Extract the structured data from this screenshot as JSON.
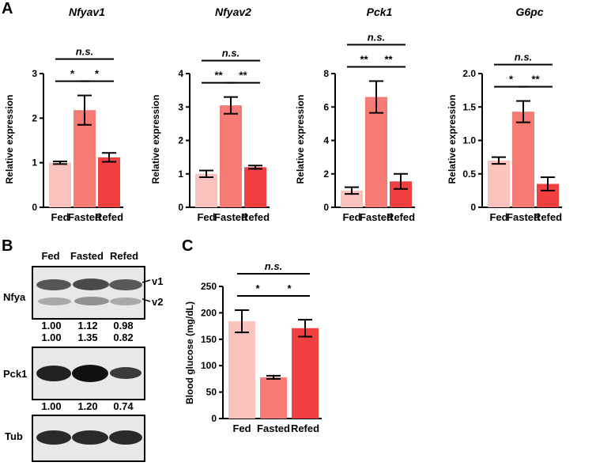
{
  "panels": {
    "a": "A",
    "b": "B",
    "c": "C"
  },
  "colors": {
    "fed": "#fbc3bd",
    "fasted": "#f77b75",
    "refed": "#f24040"
  },
  "categories": [
    "Fed",
    "Fasted",
    "Refed"
  ],
  "chart_data": [
    {
      "type": "bar",
      "title": "Nfyav1",
      "title_italic": true,
      "ylabel": "Relative expression",
      "ylim": [
        0,
        3
      ],
      "yticks": [
        "0",
        "1",
        "2",
        "3"
      ],
      "categories": [
        "Fed",
        "Fasted",
        "Refed"
      ],
      "values": [
        1.0,
        2.18,
        1.12
      ],
      "errors": [
        0.03,
        0.33,
        0.1
      ],
      "significance": [
        {
          "from": 0,
          "to": 1,
          "label": "*"
        },
        {
          "from": 1,
          "to": 2,
          "label": "*"
        },
        {
          "from": 0,
          "to": 2,
          "label": "n.s."
        }
      ]
    },
    {
      "type": "bar",
      "title": "Nfyav2",
      "title_italic": true,
      "ylabel": "Relative expression",
      "ylim": [
        0,
        4
      ],
      "yticks": [
        "0",
        "1",
        "2",
        "3",
        "4"
      ],
      "categories": [
        "Fed",
        "Fasted",
        "Refed"
      ],
      "values": [
        1.0,
        3.05,
        1.2
      ],
      "errors": [
        0.1,
        0.25,
        0.05
      ],
      "significance": [
        {
          "from": 0,
          "to": 1,
          "label": "**"
        },
        {
          "from": 1,
          "to": 2,
          "label": "**"
        },
        {
          "from": 0,
          "to": 2,
          "label": "n.s."
        }
      ]
    },
    {
      "type": "bar",
      "title": "Pck1",
      "title_italic": true,
      "ylabel": "Relative expression",
      "ylim": [
        0,
        8
      ],
      "yticks": [
        "0",
        "2",
        "4",
        "6",
        "8"
      ],
      "categories": [
        "Fed",
        "Fasted",
        "Refed"
      ],
      "values": [
        1.0,
        6.6,
        1.55
      ],
      "errors": [
        0.2,
        0.95,
        0.45
      ],
      "significance": [
        {
          "from": 0,
          "to": 1,
          "label": "**"
        },
        {
          "from": 1,
          "to": 2,
          "label": "**"
        },
        {
          "from": 0,
          "to": 2,
          "label": "n.s."
        }
      ]
    },
    {
      "type": "bar",
      "title": "G6pc",
      "title_italic": true,
      "ylabel": "Relative expression",
      "ylim": [
        0,
        2.0
      ],
      "yticks": [
        "0",
        "0.5",
        "1.0",
        "1.5",
        "2.0"
      ],
      "categories": [
        "Fed",
        "Fasted",
        "Refed"
      ],
      "values": [
        0.7,
        1.43,
        0.35
      ],
      "errors": [
        0.05,
        0.16,
        0.1
      ],
      "significance": [
        {
          "from": 0,
          "to": 1,
          "label": "*"
        },
        {
          "from": 1,
          "to": 2,
          "label": "**"
        },
        {
          "from": 0,
          "to": 2,
          "label": "n.s."
        }
      ]
    },
    {
      "type": "bar",
      "title": "",
      "ylabel": "Blood glucose (mg/dL)",
      "ylim": [
        0,
        250
      ],
      "yticks": [
        "0",
        "50",
        "100",
        "150",
        "200",
        "250"
      ],
      "categories": [
        "Fed",
        "Fasted",
        "Refed"
      ],
      "values": [
        184,
        78,
        171
      ],
      "errors": [
        21,
        3,
        16
      ],
      "significance": [
        {
          "from": 0,
          "to": 1,
          "label": "*"
        },
        {
          "from": 1,
          "to": 2,
          "label": "*"
        },
        {
          "from": 0,
          "to": 2,
          "label": "n.s."
        }
      ]
    }
  ],
  "blot": {
    "lanes": [
      "Fed",
      "Fasted",
      "Refed"
    ],
    "nfya": {
      "label": "Nfya",
      "v1": "v1",
      "v2": "v2",
      "v1_quant": [
        "1.00",
        "1.12",
        "0.98"
      ],
      "v2_quant": [
        "1.00",
        "1.35",
        "0.82"
      ]
    },
    "pck1": {
      "label": "Pck1",
      "quant": [
        "1.00",
        "1.20",
        "0.74"
      ]
    },
    "tub": {
      "label": "Tub"
    }
  }
}
